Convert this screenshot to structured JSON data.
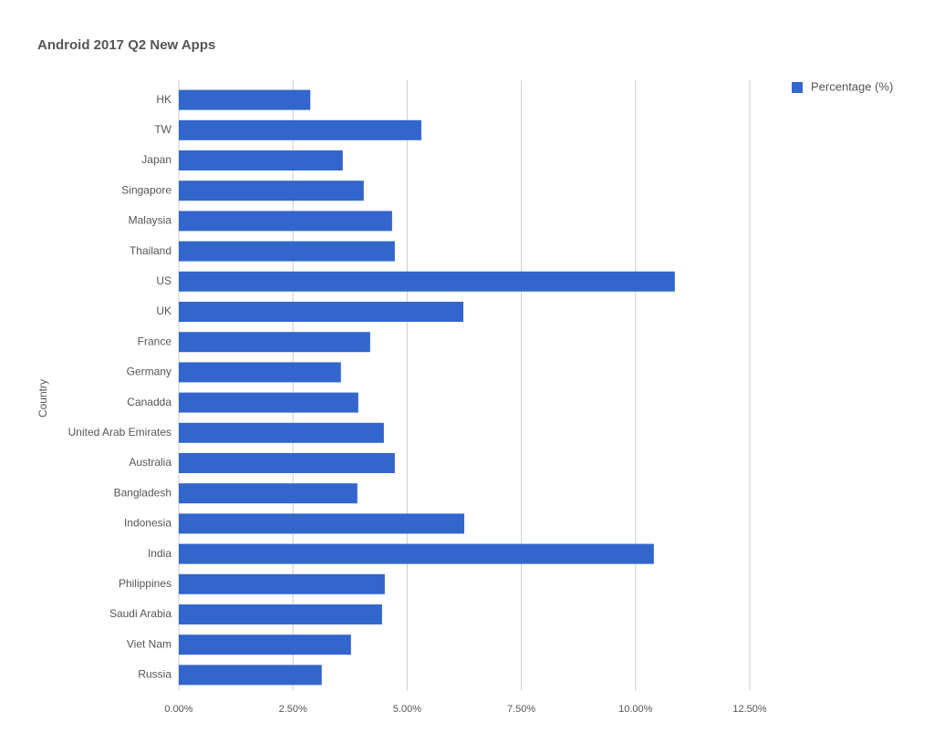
{
  "chart_data": {
    "type": "bar",
    "orientation": "horizontal",
    "title": "Android 2017 Q2 New Apps",
    "y_label": "Country",
    "categories": [
      "HK",
      "TW",
      "Japan",
      "Singapore",
      "Malaysia",
      "Thailand",
      "US",
      "UK",
      "France",
      "Germany",
      "Canadda",
      "United Arab Emirates",
      "Australia",
      "Bangladesh",
      "Indonesia",
      "India",
      "Philippines",
      "Saudi Arabia",
      "Viet Nam",
      "Russia"
    ],
    "series": [
      {
        "name": "Percentage (%)",
        "color": "#3366cc",
        "values": [
          2.88,
          5.31,
          3.59,
          4.05,
          4.67,
          4.73,
          10.86,
          6.23,
          4.19,
          3.55,
          3.93,
          4.49,
          4.73,
          3.91,
          6.25,
          10.4,
          4.51,
          4.45,
          3.77,
          3.13
        ]
      }
    ],
    "xlim": [
      0,
      12.5
    ],
    "xticks": [
      {
        "value": 0,
        "label": "0.00%"
      },
      {
        "value": 2.5,
        "label": "2.50%"
      },
      {
        "value": 5,
        "label": "5.00%"
      },
      {
        "value": 7.5,
        "label": "7.50%"
      },
      {
        "value": 10,
        "label": "10.00%"
      },
      {
        "value": 12.5,
        "label": "12.50%"
      }
    ],
    "grid": true,
    "legend": "top-right"
  }
}
